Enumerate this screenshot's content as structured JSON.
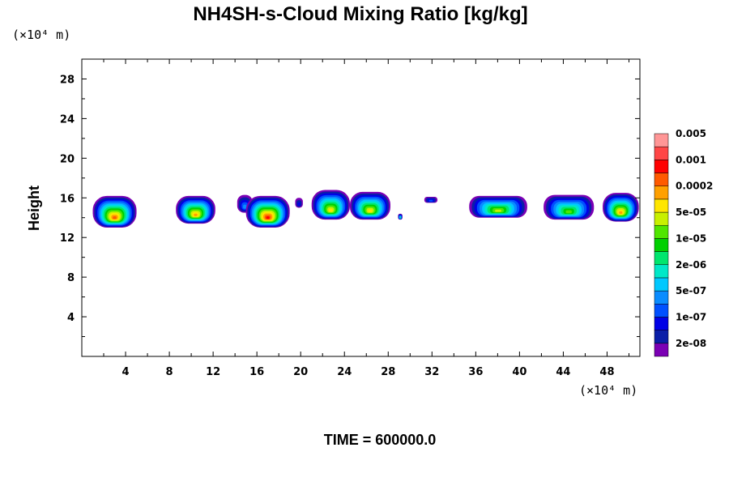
{
  "chart_data": {
    "type": "heatmap",
    "title": "NH4SH-s-Cloud Mixing Ratio [kg/kg]",
    "ylabel": "Height",
    "x_unit": "(×10⁴ m)",
    "y_unit": "(×10⁴ m)",
    "footer": "TIME = 600000.0",
    "xlim": [
      0,
      51
    ],
    "ylim": [
      0,
      30
    ],
    "xticks": [
      4,
      8,
      12,
      16,
      20,
      24,
      28,
      32,
      36,
      40,
      44,
      48
    ],
    "yticks": [
      4,
      8,
      12,
      16,
      20,
      24,
      28
    ],
    "grid": false,
    "legend_position": "right",
    "colorbar": {
      "colors": [
        "#7b00b4",
        "#0a1ea8",
        "#0000e6",
        "#0050ff",
        "#0a8cff",
        "#00c8ff",
        "#00e8c8",
        "#00e66e",
        "#00d000",
        "#50e600",
        "#c8f000",
        "#ffe600",
        "#ffa000",
        "#ff5a00",
        "#ff0000",
        "#ff4646",
        "#ff9696"
      ],
      "labels": [
        "2e-08",
        "1e-07",
        "5e-07",
        "2e-06",
        "1e-05",
        "5e-05",
        "0.0002",
        "0.001",
        "0.005"
      ]
    },
    "cloud_blobs": [
      {
        "x_range": [
          1.0,
          5.0
        ],
        "y_range": [
          13.0,
          16.2
        ],
        "max_level": 13
      },
      {
        "x_range": [
          8.6,
          12.2
        ],
        "y_range": [
          13.4,
          16.2
        ],
        "max_level": 12
      },
      {
        "x_range": [
          14.2,
          15.6
        ],
        "y_range": [
          14.5,
          16.3
        ],
        "max_level": 4
      },
      {
        "x_range": [
          15.0,
          19.0
        ],
        "y_range": [
          13.0,
          16.2
        ],
        "max_level": 14
      },
      {
        "x_range": [
          19.5,
          20.2
        ],
        "y_range": [
          15.0,
          16.0
        ],
        "max_level": 2
      },
      {
        "x_range": [
          21.0,
          24.5
        ],
        "y_range": [
          13.8,
          16.8
        ],
        "max_level": 11
      },
      {
        "x_range": [
          24.5,
          28.2
        ],
        "y_range": [
          13.8,
          16.6
        ],
        "max_level": 11
      },
      {
        "x_range": [
          28.9,
          29.3
        ],
        "y_range": [
          13.8,
          14.4
        ],
        "max_level": 7
      },
      {
        "x_range": [
          31.3,
          32.5
        ],
        "y_range": [
          15.5,
          16.1
        ],
        "max_level": 3
      },
      {
        "x_range": [
          35.4,
          40.7
        ],
        "y_range": [
          14.0,
          16.2
        ],
        "max_level": 10
      },
      {
        "x_range": [
          42.2,
          46.8
        ],
        "y_range": [
          13.8,
          16.3
        ],
        "max_level": 9
      },
      {
        "x_range": [
          47.6,
          50.9
        ],
        "y_range": [
          13.6,
          16.5
        ],
        "max_level": 12
      }
    ]
  }
}
